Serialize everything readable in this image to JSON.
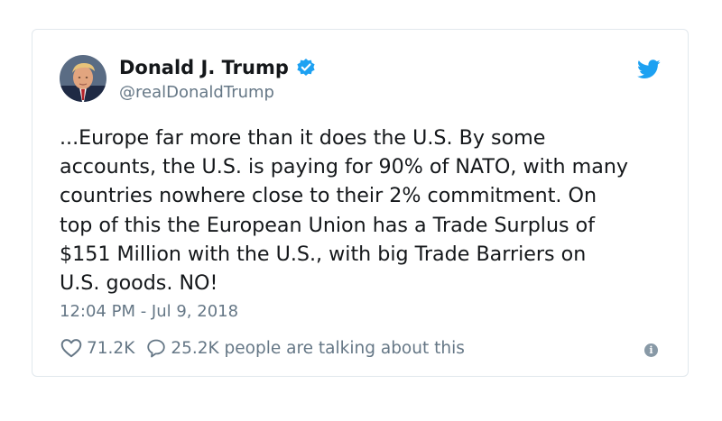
{
  "tweet": {
    "author": {
      "name": "Donald J. Trump",
      "handle": "@realDonaldTrump",
      "verified": true
    },
    "text_lines": [
      "...Europe far more than it does the U.S. By some",
      "accounts, the U.S. is paying for 90% of NATO, with many",
      "countries nowhere close to their 2% commitment. On",
      "top of this the European Union has a Trade Surplus of",
      "$151 Million with the U.S., with big Trade Barriers on",
      "U.S. goods. NO!"
    ],
    "timestamp": "12:04 PM - Jul 9, 2018",
    "likes": "71.2K",
    "talking": "25.2K people are talking about this"
  },
  "colors": {
    "twitter_blue": "#1da1f2",
    "text": "#14171a",
    "muted": "#657786",
    "border": "#e1e8ed"
  },
  "icons": {
    "brand": "twitter-bird-icon",
    "badge": "verified-badge-icon",
    "like": "heart-icon",
    "reply": "comment-icon",
    "info": "info-icon"
  }
}
